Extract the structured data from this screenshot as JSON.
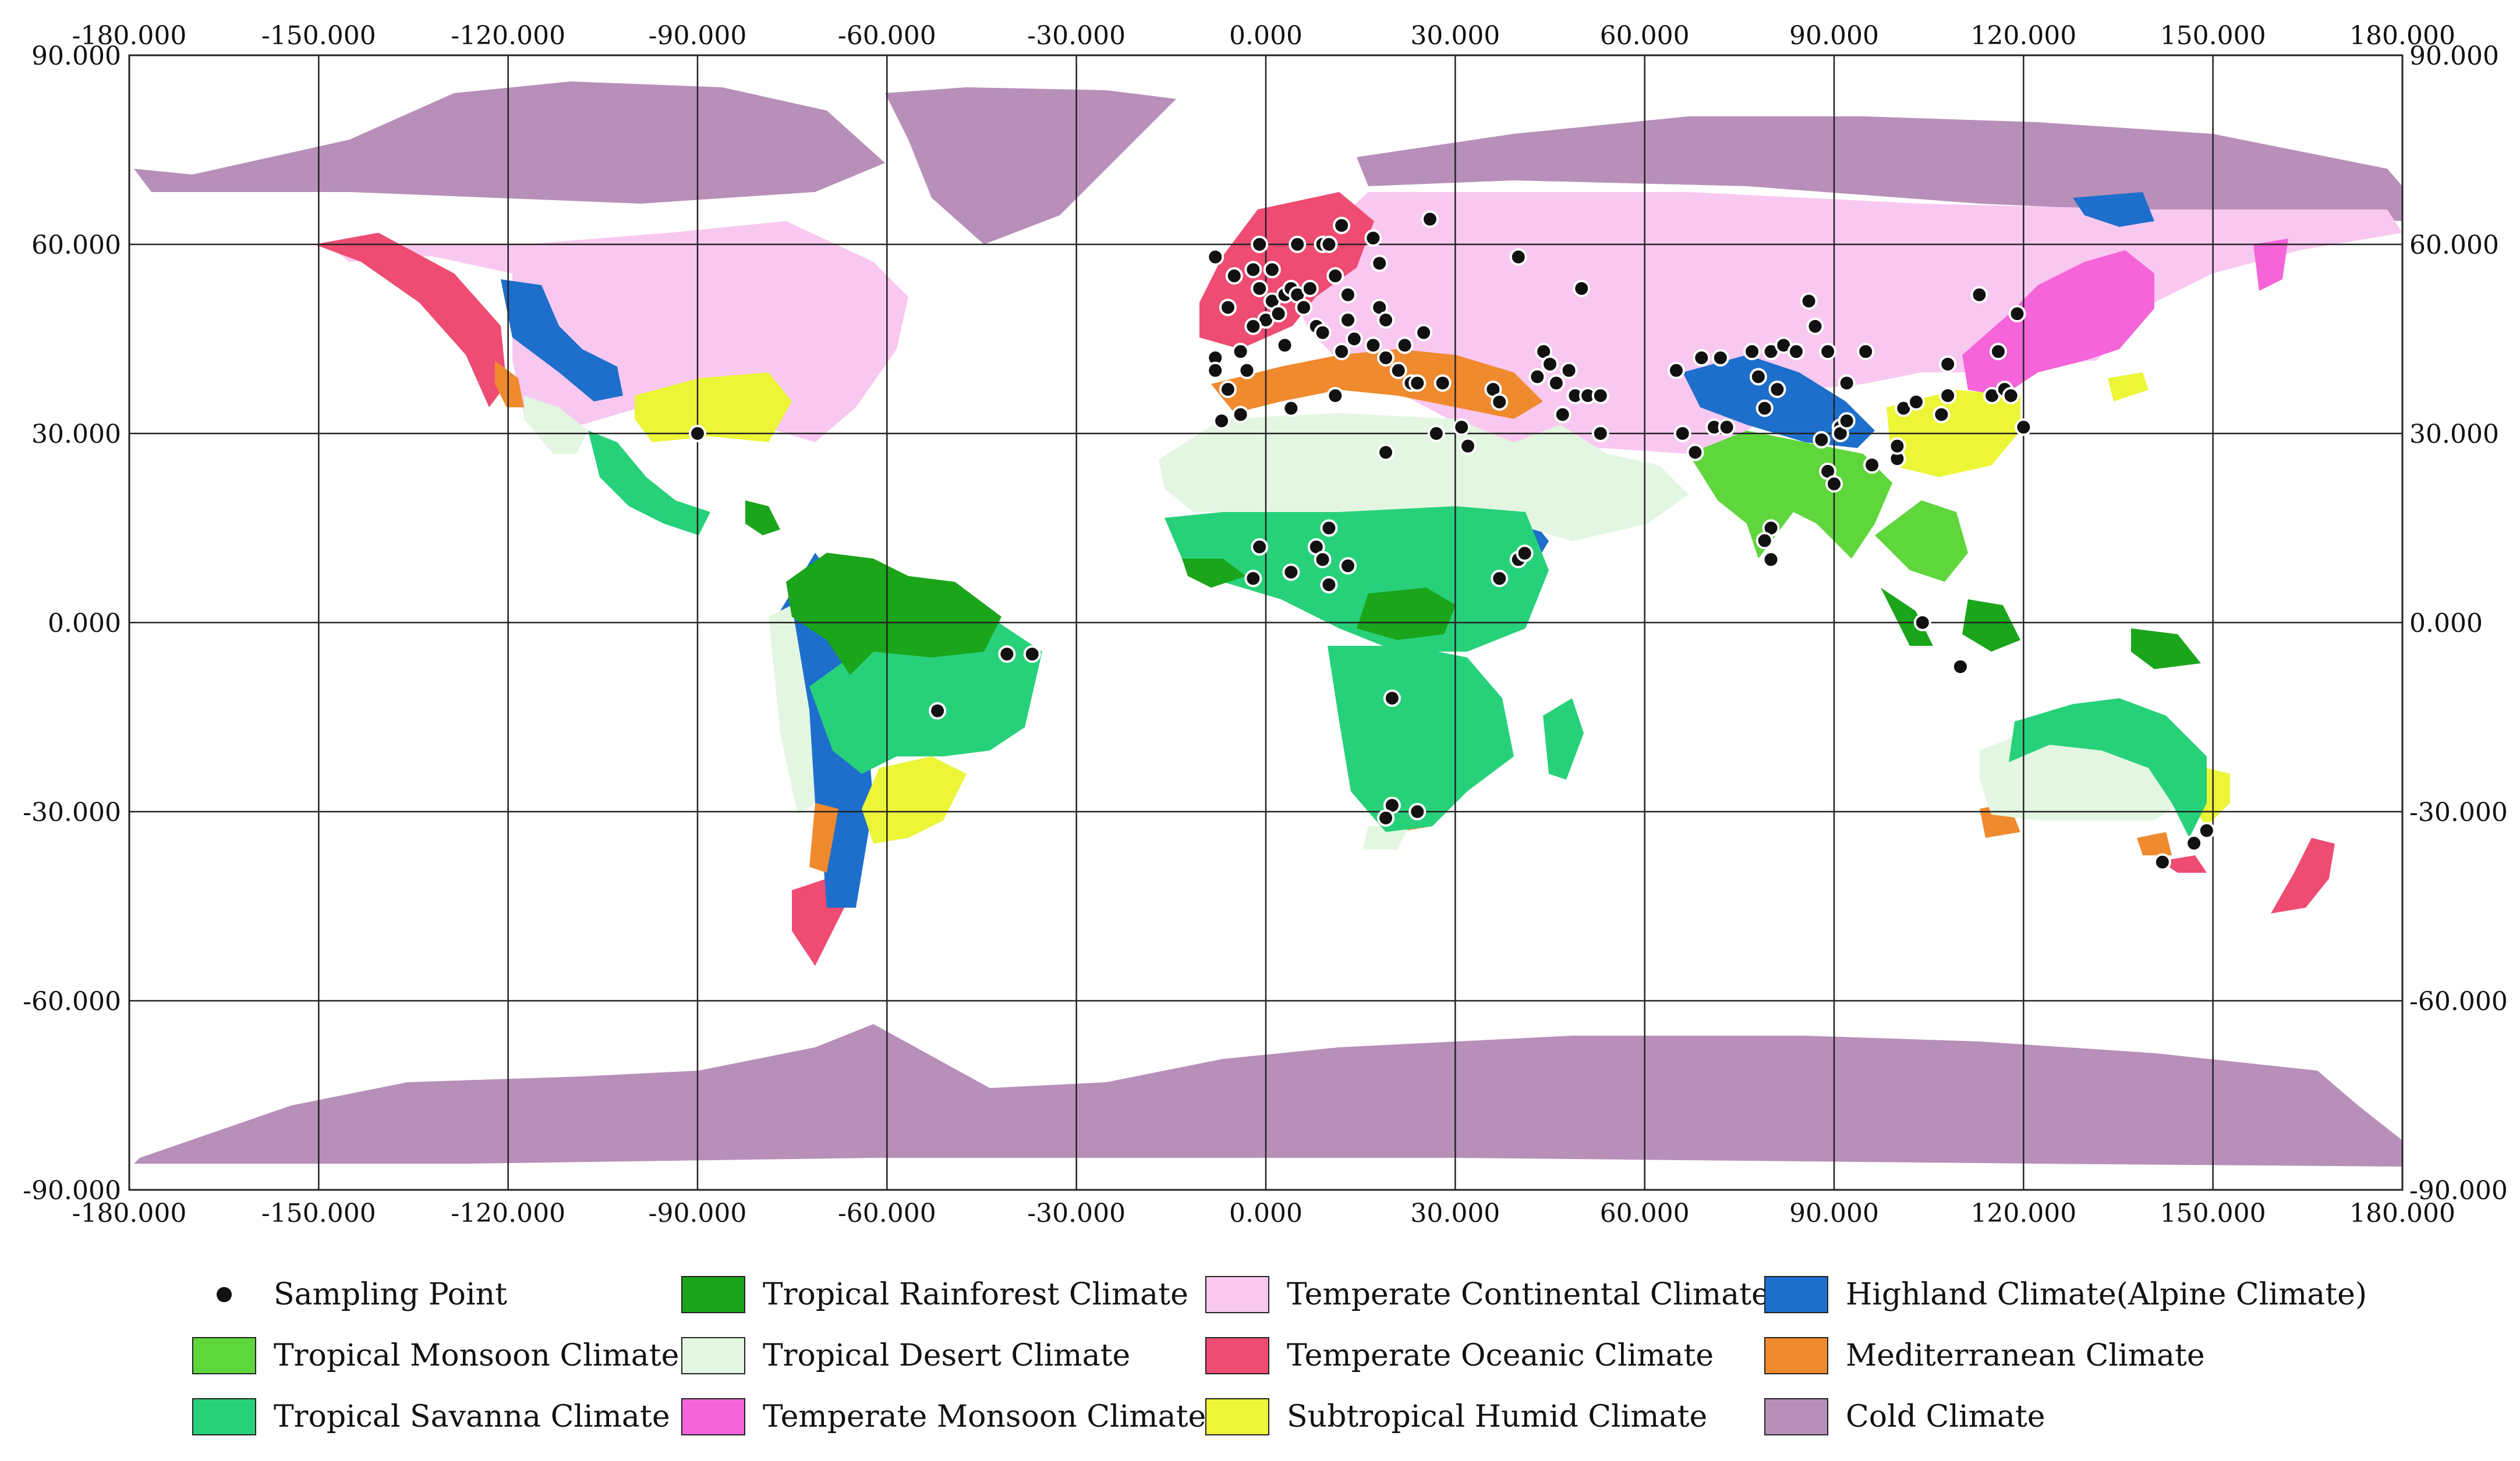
{
  "map": {
    "x_ticks": [
      "-180.000",
      "-150.000",
      "-120.000",
      "-90.000",
      "-60.000",
      "-30.000",
      "0.000",
      "30.000",
      "60.000",
      "90.000",
      "120.000",
      "150.000",
      "180.000"
    ],
    "y_ticks": [
      "90.000",
      "60.000",
      "30.000",
      "0.000",
      "-30.000",
      "-60.000",
      "-90.000"
    ],
    "colors": {
      "tropical_monsoon": "#5fd63c",
      "tropical_rainforest": "#1aa51a",
      "tropical_savanna": "#27d17a",
      "tropical_desert": "#e3f6e1",
      "temperate_monsoon": "#f564d8",
      "temperate_continental": "#f9c8f1",
      "temperate_oceanic": "#ee4c72",
      "subtropical_humid": "#ecf536",
      "highland": "#1e6fcc",
      "mediterranean": "#f08a2e",
      "cold": "#b88fb8",
      "point": "#111111"
    }
  },
  "legend": {
    "items": [
      {
        "key": "point",
        "label": "Sampling Point"
      },
      {
        "key": "tropical_rainforest",
        "label": "Tropical Rainforest Climate"
      },
      {
        "key": "temperate_continental",
        "label": "Temperate Continental Climate"
      },
      {
        "key": "highland",
        "label": "Highland Climate(Alpine Climate)"
      },
      {
        "key": "tropical_monsoon",
        "label": "Tropical Monsoon Climate"
      },
      {
        "key": "tropical_desert",
        "label": "Tropical Desert Climate"
      },
      {
        "key": "temperate_oceanic",
        "label": "Temperate Oceanic Climate"
      },
      {
        "key": "mediterranean",
        "label": "Mediterranean Climate"
      },
      {
        "key": "tropical_savanna",
        "label": "Tropical Savanna Climate"
      },
      {
        "key": "temperate_monsoon",
        "label": "Temperate Monsoon Climate"
      },
      {
        "key": "subtropical_humid",
        "label": "Subtropical Humid Climate"
      },
      {
        "key": "cold",
        "label": "Cold Climate"
      }
    ]
  },
  "sampling_points": [
    [
      -90,
      30
    ],
    [
      -8,
      58
    ],
    [
      -6,
      50
    ],
    [
      -5,
      55
    ],
    [
      -8,
      42
    ],
    [
      -8,
      40
    ],
    [
      -4,
      43
    ],
    [
      -3,
      40
    ],
    [
      -6,
      37
    ],
    [
      -7,
      32
    ],
    [
      -4,
      33
    ],
    [
      -2,
      56
    ],
    [
      -1,
      53
    ],
    [
      0,
      48
    ],
    [
      -2,
      47
    ],
    [
      1,
      51
    ],
    [
      2,
      49
    ],
    [
      3,
      44
    ],
    [
      -1,
      60
    ],
    [
      1,
      56
    ],
    [
      3,
      52
    ],
    [
      4,
      53
    ],
    [
      5,
      52
    ],
    [
      6,
      50
    ],
    [
      7,
      53
    ],
    [
      8,
      47
    ],
    [
      9,
      46
    ],
    [
      5,
      60
    ],
    [
      9,
      60
    ],
    [
      10,
      60
    ],
    [
      12,
      63
    ],
    [
      11,
      55
    ],
    [
      13,
      52
    ],
    [
      13,
      48
    ],
    [
      14,
      45
    ],
    [
      12,
      43
    ],
    [
      17,
      61
    ],
    [
      18,
      57
    ],
    [
      18,
      50
    ],
    [
      19,
      48
    ],
    [
      17,
      44
    ],
    [
      19,
      42
    ],
    [
      21,
      40
    ],
    [
      22,
      44
    ],
    [
      23,
      38
    ],
    [
      25,
      46
    ],
    [
      26,
      64
    ],
    [
      24,
      38
    ],
    [
      28,
      38
    ],
    [
      31,
      31
    ],
    [
      32,
      28
    ],
    [
      27,
      30
    ],
    [
      19,
      27
    ],
    [
      4,
      34
    ],
    [
      11,
      36
    ],
    [
      36,
      37
    ],
    [
      37,
      35
    ],
    [
      40,
      58
    ],
    [
      44,
      43
    ],
    [
      45,
      41
    ],
    [
      43,
      39
    ],
    [
      46,
      38
    ],
    [
      48,
      40
    ],
    [
      49,
      36
    ],
    [
      50,
      53
    ],
    [
      51,
      36
    ],
    [
      53,
      36
    ],
    [
      47,
      33
    ],
    [
      53,
      30
    ],
    [
      65,
      40
    ],
    [
      66,
      30
    ],
    [
      68,
      27
    ],
    [
      69,
      42
    ],
    [
      72,
      42
    ],
    [
      71,
      31
    ],
    [
      73,
      31
    ],
    [
      77,
      43
    ],
    [
      78,
      39
    ],
    [
      79,
      34
    ],
    [
      80,
      43
    ],
    [
      81,
      37
    ],
    [
      82,
      44
    ],
    [
      84,
      43
    ],
    [
      86,
      51
    ],
    [
      87,
      47
    ],
    [
      88,
      29
    ],
    [
      89,
      43
    ],
    [
      89,
      24
    ],
    [
      90,
      22
    ],
    [
      91,
      31
    ],
    [
      91,
      30
    ],
    [
      92,
      32
    ],
    [
      92,
      38
    ],
    [
      95,
      43
    ],
    [
      96,
      25
    ],
    [
      100,
      26
    ],
    [
      100,
      28
    ],
    [
      101,
      34
    ],
    [
      103,
      35
    ],
    [
      104,
      0
    ],
    [
      107,
      33
    ],
    [
      108,
      36
    ],
    [
      108,
      41
    ],
    [
      110,
      -7
    ],
    [
      113,
      52
    ],
    [
      115,
      36
    ],
    [
      116,
      43
    ],
    [
      117,
      37
    ],
    [
      118,
      36
    ],
    [
      119,
      49
    ],
    [
      120,
      31
    ],
    [
      80,
      15
    ],
    [
      79,
      13
    ],
    [
      80,
      10
    ],
    [
      -1,
      12
    ],
    [
      -2,
      7
    ],
    [
      4,
      8
    ],
    [
      8,
      12
    ],
    [
      9,
      10
    ],
    [
      10,
      15
    ],
    [
      10,
      6
    ],
    [
      13,
      9
    ],
    [
      20,
      -12
    ],
    [
      20,
      -29
    ],
    [
      19,
      -31
    ],
    [
      24,
      -30
    ],
    [
      37,
      7
    ],
    [
      40,
      10
    ],
    [
      41,
      11
    ],
    [
      -52,
      -14
    ],
    [
      -41,
      -5
    ],
    [
      -37,
      -5
    ],
    [
      142,
      -38
    ],
    [
      147,
      -35
    ],
    [
      149,
      -33
    ]
  ]
}
